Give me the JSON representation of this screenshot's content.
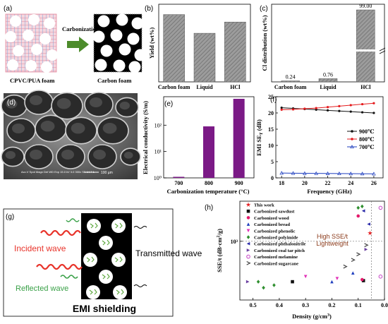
{
  "panel_labels": {
    "a": "(a)",
    "b": "(b)",
    "c": "(c)",
    "d": "(d)",
    "e": "(e)",
    "f": "(f)",
    "g": "(g)",
    "h": "(h)"
  },
  "panel_a": {
    "left_caption": "CPVC/PUA foam",
    "right_caption": "Carbon foam",
    "arrow_label": "Carbonization",
    "colors": {
      "grid_pink": "#e58a9e",
      "grid_blue": "#7fa7d8",
      "arrow_green": "#4c8b2b"
    }
  },
  "panel_d": {
    "scale_bar": "100 µm",
    "info": "Acc.V  Spot Magn   Det  WD  Exp\n15.0 kV 3.0  300x   SE  14.7  1"
  },
  "panel_g": {
    "incident": "Incident wave",
    "reflected": "Reflected wave",
    "transmitted": "Transmitted wave",
    "title": "EMI shielding",
    "colors": {
      "incident": "#e8332a",
      "reflected": "#3aa148",
      "inner": "#5aa63a"
    }
  },
  "chart_data": [
    {
      "id": "b",
      "type": "bar",
      "categories": [
        "Carbon foam",
        "Liquid",
        "HCl"
      ],
      "values": [
        36,
        26,
        32
      ],
      "ylabel": "Yield (wt%)",
      "ylim": [
        0,
        40
      ],
      "bar_color": "#8a8a8a"
    },
    {
      "id": "c",
      "type": "bar",
      "categories": [
        "Carbon foam",
        "Liquid",
        "HCl"
      ],
      "values": [
        0.24,
        0.76,
        99.0
      ],
      "value_labels": [
        "0.24",
        "0.76",
        "99.00"
      ],
      "ylabel": "Cl distribution (wt%)",
      "axis_break": true,
      "bar_color": "#8a8a8a"
    },
    {
      "id": "e",
      "type": "bar",
      "categories": [
        "700",
        "800",
        "900"
      ],
      "values": [
        1,
        90,
        1000
      ],
      "ylabel": "Electrical conductivity (S/m)",
      "xlabel": "Carbonization temperature (°C)",
      "yscale": "log",
      "ylim": [
        1,
        1000
      ],
      "yticks": [
        "10⁰",
        "10¹",
        "10²"
      ],
      "bar_color": "#7b1a86"
    },
    {
      "id": "f",
      "type": "line",
      "xlabel": "Frequency (GHz)",
      "ylabel": "EMI SE",
      "ylabel_sub": "T",
      "ylabel_unit": " (dB)",
      "xlim": [
        17.5,
        26.8
      ],
      "ylim": [
        0,
        25
      ],
      "xticks": [
        18,
        20,
        22,
        24,
        26
      ],
      "yticks": [
        0,
        5,
        10,
        15,
        20,
        25
      ],
      "series": [
        {
          "name": "900℃",
          "color": "#111111",
          "marker": "circle",
          "x": [
            18,
            19,
            20,
            21,
            22,
            23,
            24,
            25,
            26
          ],
          "y": [
            21.6,
            21.4,
            21.2,
            21.0,
            20.8,
            20.6,
            20.4,
            20.2,
            20.0
          ]
        },
        {
          "name": "800℃",
          "color": "#e41a1c",
          "marker": "circle",
          "x": [
            18,
            19,
            20,
            21,
            22,
            23,
            24,
            25,
            26
          ],
          "y": [
            21.0,
            21.1,
            21.3,
            21.5,
            21.8,
            22.1,
            22.4,
            22.7,
            23.0
          ]
        },
        {
          "name": "700℃",
          "color": "#1f3fbf",
          "marker": "triangle",
          "x": [
            18,
            19,
            20,
            21,
            22,
            23,
            24,
            25,
            26
          ],
          "y": [
            1.5,
            1.45,
            1.4,
            1.38,
            1.35,
            1.33,
            1.3,
            1.28,
            1.25
          ]
        }
      ]
    },
    {
      "id": "h",
      "type": "scatter",
      "xlabel": "Density (g/cm",
      "xlabel_sup": "3",
      "xlabel_end": ")",
      "ylabel": "SSE/t (dB·cm",
      "ylabel_sup": "2",
      "ylabel_end": "/g)",
      "xlim": [
        0.55,
        0.0
      ],
      "ylim_log": [
        200,
        3000
      ],
      "xticks": [
        "0.5",
        "0.4",
        "0.3",
        "0.2",
        "0.1",
        "0.0"
      ],
      "ytick_label": "10³",
      "annotation": "High SSE/t\nLightweight",
      "series": [
        {
          "name": "This work",
          "color": "#e41a1c",
          "marker": "star",
          "points": [
            [
              0.055,
              1250
            ]
          ]
        },
        {
          "name": "Carbonized sawdust",
          "color": "#111111",
          "marker": "square",
          "points": [
            [
              0.35,
              330
            ],
            [
              0.08,
              340
            ]
          ]
        },
        {
          "name": "Carbonized wood",
          "color": "#e41a6b",
          "marker": "circle",
          "points": [
            [
              0.1,
              2000
            ],
            [
              0.085,
              350
            ]
          ]
        },
        {
          "name": "Carbonized bread",
          "color": "#1f3fbf",
          "marker": "triangle",
          "points": [
            [
              0.2,
              330
            ],
            [
              0.12,
              420
            ]
          ]
        },
        {
          "name": "Carbonized phenolic",
          "color": "#e22fb7",
          "marker": "triangle-down",
          "points": [
            [
              0.3,
              380
            ],
            [
              0.18,
              360
            ]
          ]
        },
        {
          "name": "Carbonized polyimide",
          "color": "#2f8f2f",
          "marker": "diamond",
          "points": [
            [
              0.42,
              300
            ],
            [
              0.46,
              280
            ],
            [
              0.48,
              330
            ],
            [
              0.085,
              2600
            ],
            [
              0.1,
              2500
            ]
          ]
        },
        {
          "name": "Carbonized phthalonitrile",
          "color": "#2a2aa8",
          "marker": "triangle-left",
          "points": [
            [
              0.08,
              2300
            ],
            [
              0.06,
              1600
            ]
          ]
        },
        {
          "name": "Carbonized coal tar pitch",
          "color": "#6a3fa0",
          "marker": "triangle-right",
          "points": [
            [
              0.52,
              330
            ],
            [
              0.07,
              800
            ]
          ]
        },
        {
          "name": "Carbonized melamine",
          "color": "#c542c5",
          "marker": "half-circle",
          "points": [
            [
              0.015,
              2500
            ],
            [
              0.015,
              380
            ]
          ]
        },
        {
          "name": "Carbonized sugarcane",
          "color": "#444444",
          "marker": "chevron",
          "points": [
            [
              0.15,
              500
            ],
            [
              0.12,
              600
            ],
            [
              0.1,
              700
            ],
            [
              0.07,
              900
            ]
          ]
        }
      ]
    }
  ]
}
